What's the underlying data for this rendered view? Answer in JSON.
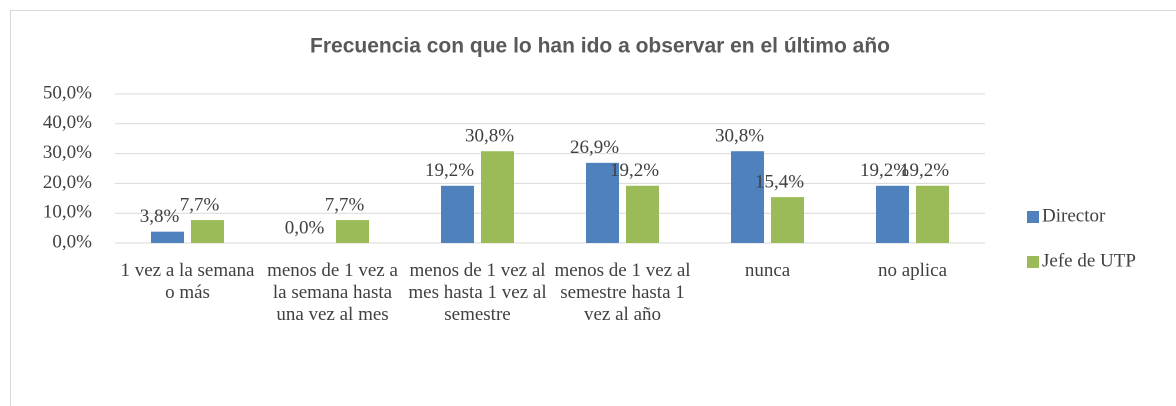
{
  "chart_data": {
    "type": "bar",
    "title": "Frecuencia con que lo han ido a observar en el último año",
    "categories": [
      "1 vez a la semana o más",
      "menos de 1 vez a la semana hasta una vez al mes",
      "menos de 1 vez al mes hasta 1 vez al semestre",
      "menos de 1 vez al semestre hasta 1 vez al año",
      "nunca",
      "no aplica"
    ],
    "series": [
      {
        "name": "Director",
        "color": "#4f81bd",
        "values": [
          3.8,
          0.0,
          19.2,
          26.9,
          30.8,
          19.2
        ],
        "value_labels": [
          "3,8%",
          "0,0%",
          "19,2%",
          "26,9%",
          "30,8%",
          "19,2%"
        ]
      },
      {
        "name": "Jefe de UTP",
        "color": "#9bbb59",
        "values": [
          7.7,
          7.7,
          30.8,
          19.2,
          15.4,
          19.2
        ],
        "value_labels": [
          "7,7%",
          "7,7%",
          "30,8%",
          "19,2%",
          "15,4%",
          "19,2%"
        ]
      }
    ],
    "ylim": [
      0,
      50
    ],
    "yticks": [
      {
        "value": 0,
        "label": "0,0%"
      },
      {
        "value": 10,
        "label": "10,0%"
      },
      {
        "value": 20,
        "label": "20,0%"
      },
      {
        "value": 30,
        "label": "30,0%"
      },
      {
        "value": 40,
        "label": "40,0%"
      },
      {
        "value": 50,
        "label": "50,0%"
      }
    ],
    "grid": true,
    "legend": "right"
  }
}
